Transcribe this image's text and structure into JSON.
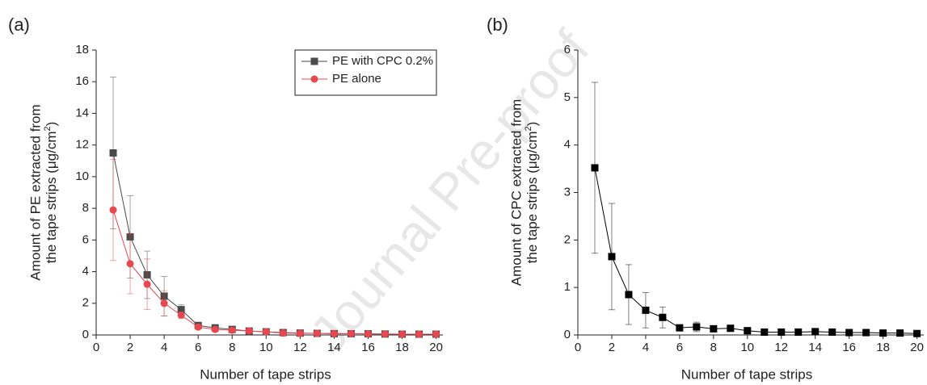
{
  "chart_data": [
    {
      "type": "line",
      "panel_label": "(a)",
      "xlabel": "Number of tape strips",
      "ylabel": [
        "Amount of PE extracted from",
        "the tape strips (μg/cm",
        "2",
        ")"
      ],
      "xlim": [
        0,
        20.4
      ],
      "ylim": [
        0,
        18
      ],
      "xticks": [
        0,
        2,
        4,
        6,
        8,
        10,
        12,
        14,
        16,
        18,
        20
      ],
      "yticks": [
        0,
        2,
        4,
        6,
        8,
        10,
        12,
        14,
        16,
        18
      ],
      "legend": "upper right",
      "x": [
        1,
        2,
        3,
        4,
        5,
        6,
        7,
        8,
        9,
        10,
        11,
        12,
        13,
        14,
        15,
        16,
        17,
        18,
        19,
        20
      ],
      "series": [
        {
          "name": "PE with CPC 0.2%",
          "color": "#4a4a4a",
          "marker": "square",
          "values": [
            11.5,
            6.2,
            3.8,
            2.45,
            1.6,
            0.6,
            0.45,
            0.35,
            0.25,
            0.2,
            0.15,
            0.12,
            0.1,
            0.08,
            0.08,
            0.07,
            0.06,
            0.05,
            0.05,
            0.05
          ],
          "errors": [
            4.8,
            2.6,
            1.5,
            1.25,
            0.3,
            0.15,
            0.1,
            0.08,
            0.06,
            0.05,
            0.04,
            0.03,
            0.03,
            0.02,
            0.02,
            0.02,
            0.02,
            0.02,
            0.02,
            0.02
          ]
        },
        {
          "name": "PE alone",
          "color": "#e8474f",
          "marker": "circle",
          "values": [
            7.9,
            4.5,
            3.2,
            2.0,
            1.25,
            0.5,
            0.35,
            0.3,
            0.25,
            0.2,
            0.12,
            0.1,
            0.1,
            0.08,
            0.08,
            0.07,
            0.06,
            0.05,
            0.05,
            0.05
          ],
          "errors": [
            3.2,
            1.9,
            1.6,
            0.8,
            0.2,
            0.12,
            0.08,
            0.06,
            0.05,
            0.04,
            0.03,
            0.03,
            0.03,
            0.02,
            0.02,
            0.02,
            0.02,
            0.02,
            0.02,
            0.02
          ]
        }
      ]
    },
    {
      "type": "line",
      "panel_label": "(b)",
      "xlabel": "Number of tape strips",
      "ylabel": [
        "Amount of CPC extracted from",
        "the tape strips (μg/cm",
        "2",
        ")"
      ],
      "xlim": [
        0,
        20.4
      ],
      "ylim": [
        0,
        6
      ],
      "xticks": [
        0,
        2,
        4,
        6,
        8,
        10,
        12,
        14,
        16,
        18,
        20
      ],
      "yticks": [
        0,
        1,
        2,
        3,
        4,
        5,
        6
      ],
      "x": [
        1,
        2,
        3,
        4,
        5,
        6,
        7,
        8,
        9,
        10,
        11,
        12,
        13,
        14,
        15,
        16,
        17,
        18,
        19,
        20
      ],
      "series": [
        {
          "color": "#000000",
          "marker": "square",
          "values": [
            3.52,
            1.65,
            0.85,
            0.52,
            0.37,
            0.15,
            0.17,
            0.13,
            0.14,
            0.09,
            0.06,
            0.06,
            0.06,
            0.07,
            0.06,
            0.05,
            0.05,
            0.04,
            0.04,
            0.03
          ],
          "errors": [
            1.8,
            1.12,
            0.63,
            0.37,
            0.22,
            0.05,
            0.1,
            0.04,
            0.04,
            0.03,
            0.02,
            0.02,
            0.02,
            0.02,
            0.02,
            0.02,
            0.02,
            0.02,
            0.02,
            0.02
          ]
        }
      ]
    }
  ],
  "watermark": "Journal Pre-proof"
}
